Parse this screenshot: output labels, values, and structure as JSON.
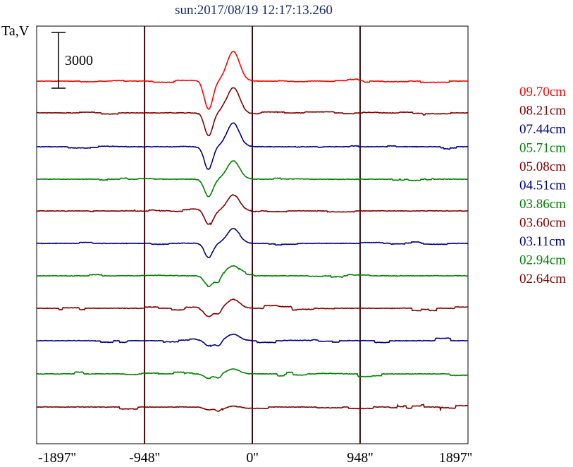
{
  "chart_data": {
    "type": "line",
    "title": "sun:2017/08/19 12:17:13.260",
    "ylabel": "Ta,V",
    "scale_bar_label": "3000",
    "scale_bar_value": 3000,
    "x_ticks": [
      "-1897''",
      "-948''",
      "0''",
      "948''",
      "1897''"
    ],
    "x_tick_values": [
      -1897,
      -948,
      0,
      948,
      1897
    ],
    "xlim": [
      -1897,
      1897
    ],
    "vertical_lines": [
      -948,
      0,
      948
    ],
    "grid": false,
    "legend_placement": "right",
    "series": [
      {
        "name": "09.70cm",
        "color": "#ff0000",
        "baseline": 115,
        "amp": 1.0
      },
      {
        "name": "08.21cm",
        "color": "#800000",
        "baseline": 160,
        "amp": 0.85
      },
      {
        "name": "07.44cm",
        "color": "#00007f",
        "baseline": 208,
        "amp": 0.8
      },
      {
        "name": "05.71cm",
        "color": "#008000",
        "baseline": 254,
        "amp": 0.62
      },
      {
        "name": "05.08cm",
        "color": "#800000",
        "baseline": 299,
        "amp": 0.55
      },
      {
        "name": "04.51cm",
        "color": "#00007f",
        "baseline": 345,
        "amp": 0.48
      },
      {
        "name": "03.86cm",
        "color": "#008000",
        "baseline": 391,
        "amp": 0.35
      },
      {
        "name": "03.60cm",
        "color": "#800000",
        "baseline": 437,
        "amp": 0.3
      },
      {
        "name": "03.11cm",
        "color": "#00007f",
        "baseline": 483,
        "amp": 0.22
      },
      {
        "name": "02.94cm",
        "color": "#008000",
        "baseline": 530,
        "amp": 0.16
      },
      {
        "name": "02.64cm",
        "color": "#800000",
        "baseline": 577,
        "amp": 0.1
      }
    ]
  }
}
